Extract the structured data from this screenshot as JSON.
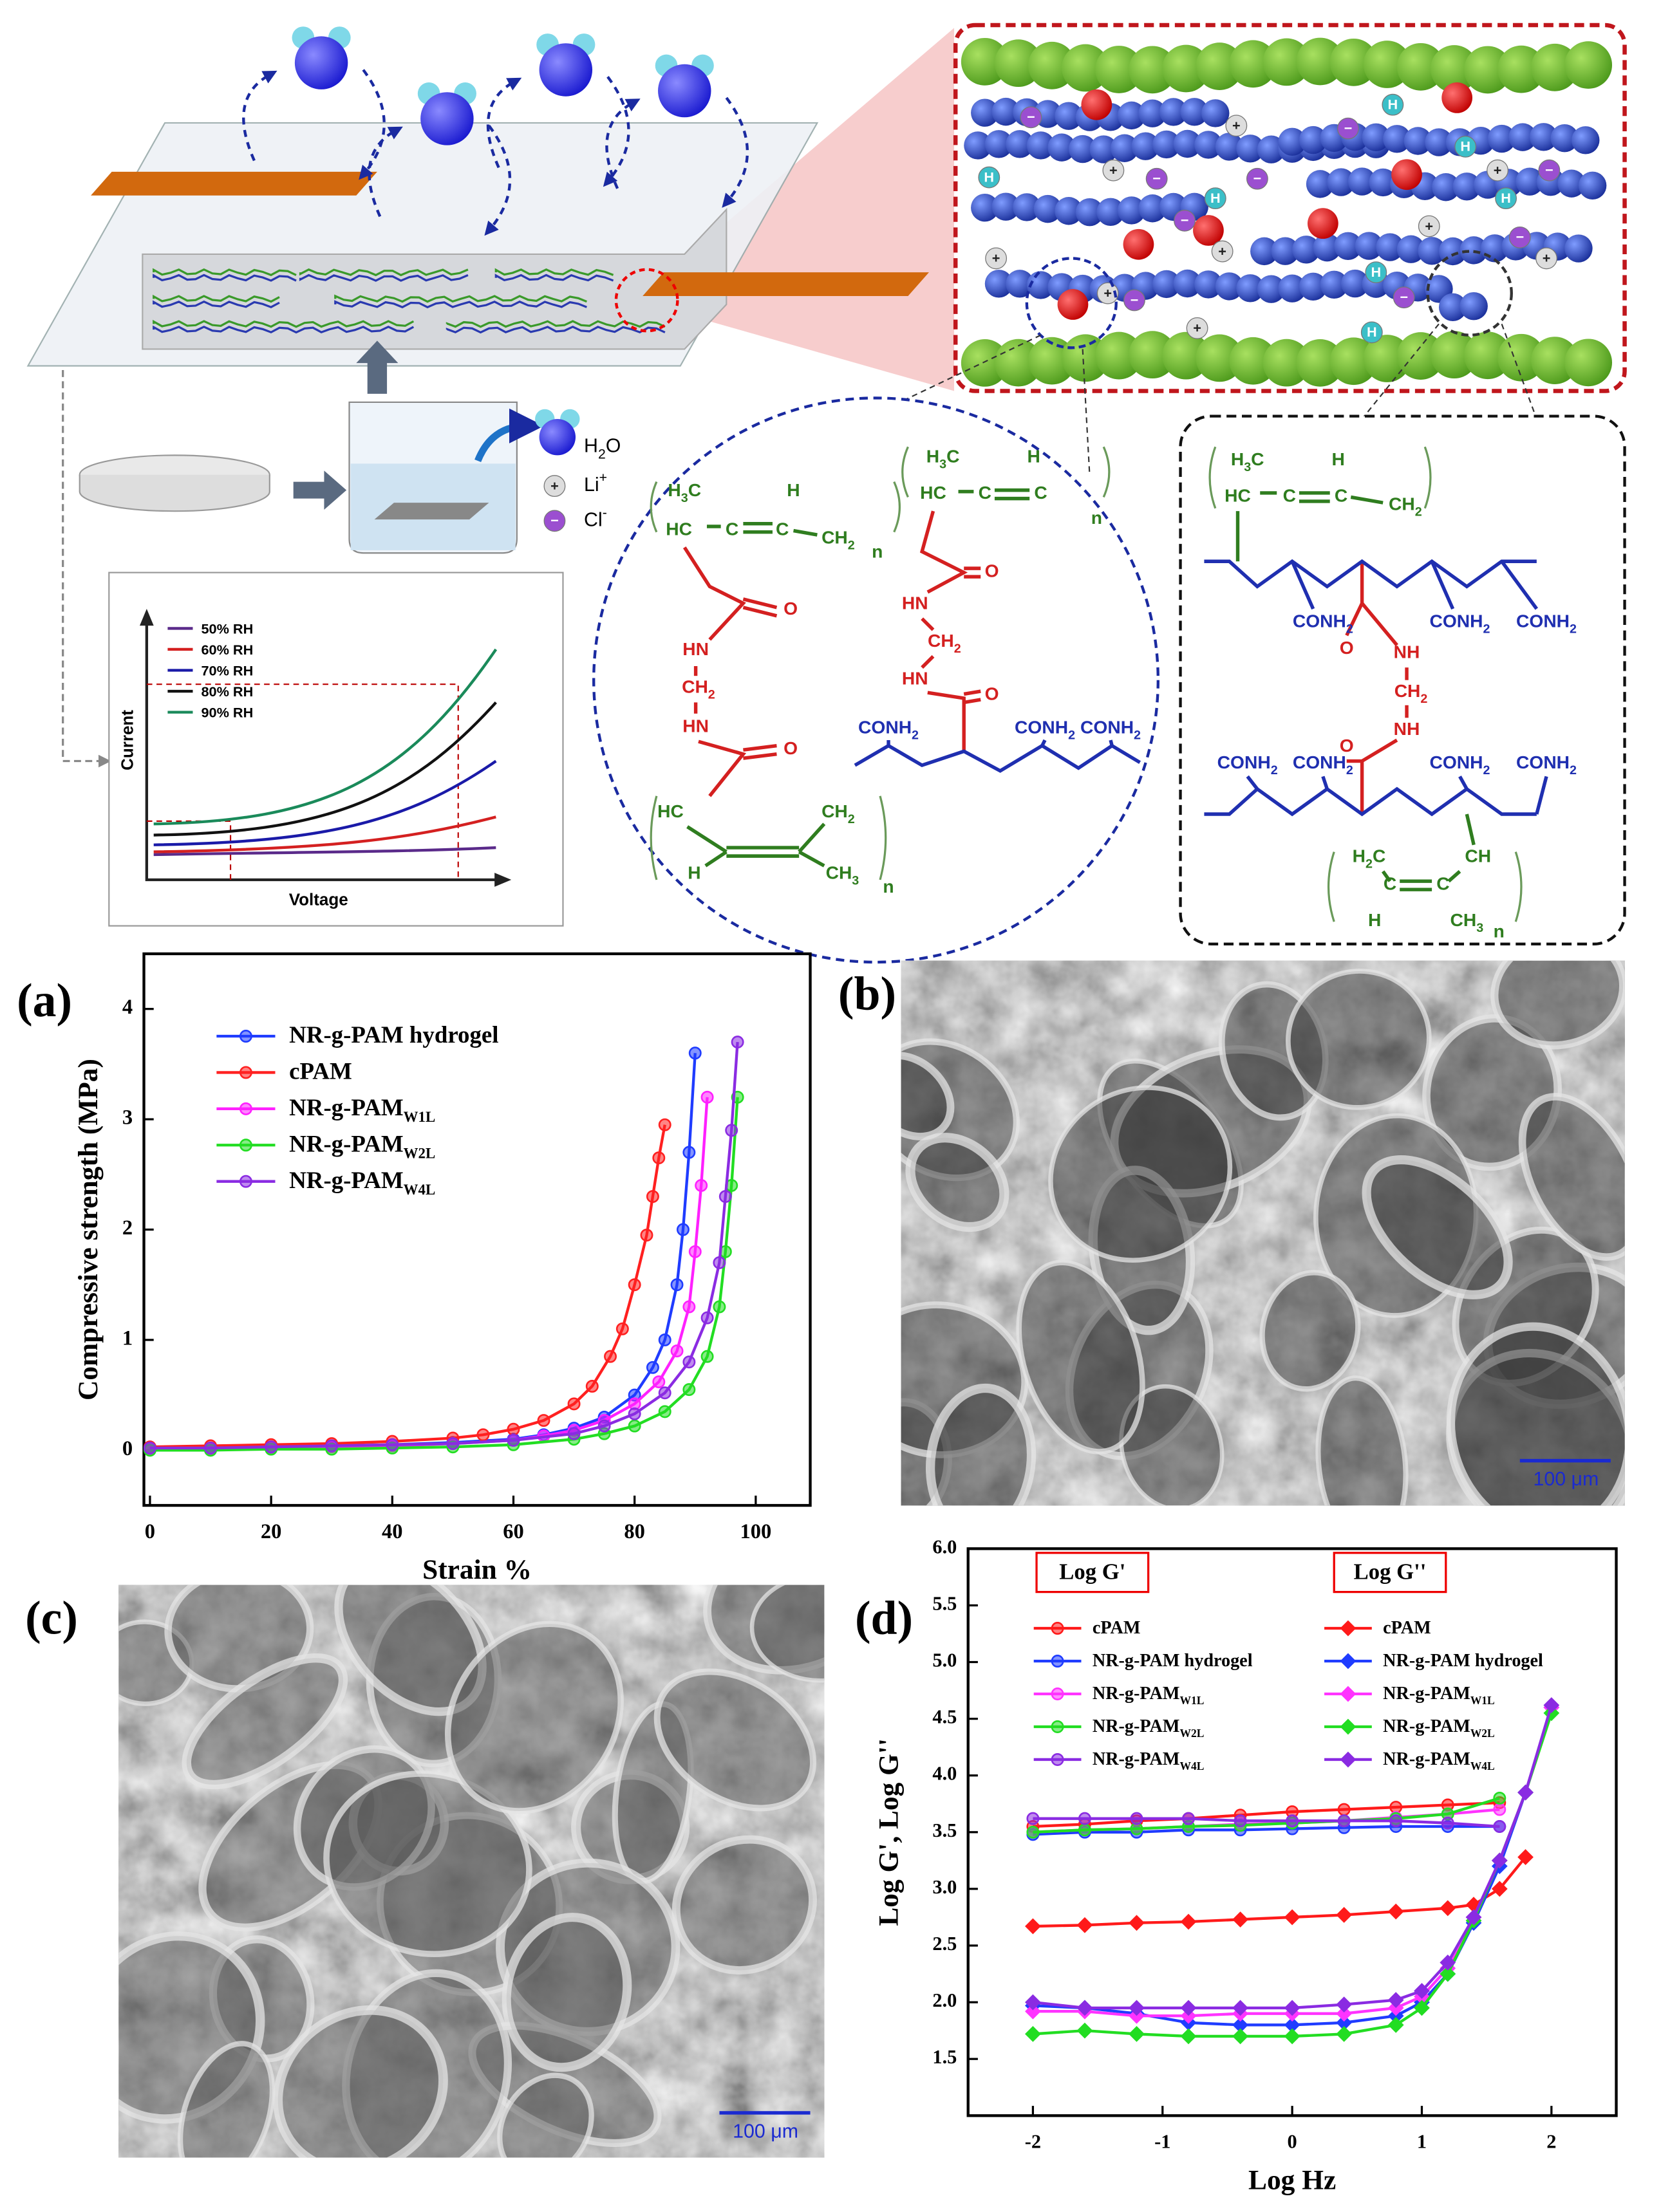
{
  "schematic": {
    "legend": [
      "H2O",
      "Li+",
      "Cl-"
    ],
    "ion_symbols": {
      "proton": "H",
      "cation": "+",
      "anion": "−"
    }
  },
  "inset": {
    "y_label": "Current",
    "x_label": "Voltage",
    "legend": [
      {
        "name": "50% RH",
        "color": "#5a2a8a"
      },
      {
        "name": "60% RH",
        "color": "#d42020"
      },
      {
        "name": "70% RH",
        "color": "#1a1aa8"
      },
      {
        "name": "80% RH",
        "color": "#111111"
      },
      {
        "name": "90% RH",
        "color": "#1a8a5a"
      }
    ]
  },
  "chem_labels": [
    {
      "text": "H3C",
      "color": "#2f7d1f"
    },
    {
      "text": "H",
      "color": "#2f7d1f"
    },
    {
      "text": "HC",
      "color": "#2f7d1f"
    },
    {
      "text": "C",
      "color": "#2f7d1f"
    },
    {
      "text": "C",
      "color": "#2f7d1f"
    },
    {
      "text": "CH2",
      "color": "#2f7d1f"
    },
    {
      "text": "n",
      "color": "#2f7d1f"
    },
    {
      "text": "O",
      "color": "#d42020"
    },
    {
      "text": "HN",
      "color": "#d42020"
    },
    {
      "text": "CH2",
      "color": "#d42020"
    },
    {
      "text": "HN",
      "color": "#d42020"
    },
    {
      "text": "O",
      "color": "#d42020"
    },
    {
      "text": "HC",
      "color": "#2f7d1f"
    },
    {
      "text": "CH2",
      "color": "#2f7d1f"
    },
    {
      "text": "H",
      "color": "#2f7d1f"
    },
    {
      "text": "CH3",
      "color": "#2f7d1f"
    },
    {
      "text": "n",
      "color": "#2f7d1f"
    },
    {
      "text": "H3C",
      "color": "#2f7d1f"
    },
    {
      "text": "H",
      "color": "#2f7d1f"
    },
    {
      "text": "HC",
      "color": "#2f7d1f"
    },
    {
      "text": "C",
      "color": "#2f7d1f"
    },
    {
      "text": "C",
      "color": "#2f7d1f"
    },
    {
      "text": "n",
      "color": "#2f7d1f"
    },
    {
      "text": "O",
      "color": "#d42020"
    },
    {
      "text": "HN",
      "color": "#d42020"
    },
    {
      "text": "CH2",
      "color": "#d42020"
    },
    {
      "text": "HN",
      "color": "#d42020"
    },
    {
      "text": "O",
      "color": "#d42020"
    },
    {
      "text": "CONH2",
      "color": "#1f2fb0"
    },
    {
      "text": "CONH2",
      "color": "#1f2fb0"
    },
    {
      "text": "CONH2",
      "color": "#1f2fb0"
    },
    {
      "text": "H3C",
      "color": "#2f7d1f"
    },
    {
      "text": "H",
      "color": "#2f7d1f"
    },
    {
      "text": "HC",
      "color": "#2f7d1f"
    },
    {
      "text": "C",
      "color": "#2f7d1f"
    },
    {
      "text": "C",
      "color": "#2f7d1f"
    },
    {
      "text": "CH2",
      "color": "#2f7d1f"
    },
    {
      "text": "CONH2",
      "color": "#1f2fb0"
    },
    {
      "text": "CONH2",
      "color": "#1f2fb0"
    },
    {
      "text": "CONH2",
      "color": "#1f2fb0"
    },
    {
      "text": "O",
      "color": "#d42020"
    },
    {
      "text": "NH",
      "color": "#d42020"
    },
    {
      "text": "CH2",
      "color": "#d42020"
    },
    {
      "text": "NH",
      "color": "#d42020"
    },
    {
      "text": "O",
      "color": "#d42020"
    },
    {
      "text": "CONH2",
      "color": "#1f2fb0"
    },
    {
      "text": "CONH2",
      "color": "#1f2fb0"
    },
    {
      "text": "CONH2",
      "color": "#1f2fb0"
    },
    {
      "text": "CONH2",
      "color": "#1f2fb0"
    },
    {
      "text": "H2C",
      "color": "#2f7d1f"
    },
    {
      "text": "CH",
      "color": "#2f7d1f"
    },
    {
      "text": "C",
      "color": "#2f7d1f"
    },
    {
      "text": "C",
      "color": "#2f7d1f"
    },
    {
      "text": "H",
      "color": "#2f7d1f"
    },
    {
      "text": "CH3",
      "color": "#2f7d1f"
    },
    {
      "text": "n",
      "color": "#2f7d1f"
    }
  ],
  "chart_data": [
    {
      "type": "line",
      "panel_label": "(a)",
      "x_label": "Strain %",
      "y_label": "Compressive strength (MPa)",
      "xlim": [
        -1,
        109
      ],
      "ylim": [
        -0.5,
        4.5
      ],
      "xticks": [
        0,
        20,
        40,
        60,
        80,
        100
      ],
      "yticks": [
        0,
        1,
        2,
        3,
        4
      ],
      "series": [
        {
          "name": "NR-g-PAM hydrogel",
          "color": "#1f3cff",
          "marker": "circle",
          "x": [
            0,
            10,
            20,
            30,
            40,
            50,
            60,
            65,
            70,
            75,
            80,
            83,
            85,
            87,
            88,
            89,
            90
          ],
          "values": [
            0.02,
            0.02,
            0.03,
            0.04,
            0.05,
            0.07,
            0.1,
            0.14,
            0.2,
            0.3,
            0.5,
            0.75,
            1.0,
            1.5,
            2.0,
            2.7,
            3.6
          ]
        },
        {
          "name": "cPAM",
          "color": "#ff2020",
          "marker": "circle",
          "x": [
            0,
            10,
            20,
            30,
            40,
            50,
            55,
            60,
            65,
            70,
            73,
            76,
            78,
            80,
            82,
            83,
            84,
            85
          ],
          "values": [
            0.03,
            0.04,
            0.05,
            0.06,
            0.08,
            0.11,
            0.14,
            0.19,
            0.27,
            0.42,
            0.58,
            0.85,
            1.1,
            1.5,
            1.95,
            2.3,
            2.65,
            2.95
          ]
        },
        {
          "name": "NR-g-PAM",
          "subscript": "W1L",
          "color": "#ff20ff",
          "marker": "circle",
          "x": [
            0,
            10,
            20,
            30,
            40,
            50,
            60,
            65,
            70,
            75,
            80,
            84,
            87,
            89,
            90,
            91,
            92
          ],
          "values": [
            0.01,
            0.01,
            0.02,
            0.03,
            0.04,
            0.06,
            0.09,
            0.13,
            0.18,
            0.27,
            0.42,
            0.62,
            0.9,
            1.3,
            1.8,
            2.4,
            3.2
          ]
        },
        {
          "name": "NR-g-PAM",
          "subscript": "W2L",
          "color": "#22dd22",
          "marker": "circle",
          "x": [
            0,
            10,
            20,
            30,
            40,
            50,
            60,
            70,
            75,
            80,
            85,
            89,
            92,
            94,
            95,
            96,
            97
          ],
          "values": [
            0,
            0,
            0.01,
            0.01,
            0.02,
            0.03,
            0.05,
            0.1,
            0.15,
            0.22,
            0.35,
            0.55,
            0.85,
            1.3,
            1.8,
            2.4,
            3.2
          ]
        },
        {
          "name": "NR-g-PAM",
          "subscript": "W4L",
          "color": "#8a2be2",
          "marker": "circle",
          "x": [
            0,
            10,
            20,
            30,
            40,
            50,
            60,
            70,
            75,
            80,
            85,
            89,
            92,
            94,
            95,
            96,
            97
          ],
          "values": [
            0.02,
            0.02,
            0.03,
            0.04,
            0.05,
            0.06,
            0.09,
            0.15,
            0.22,
            0.33,
            0.52,
            0.8,
            1.2,
            1.7,
            2.3,
            2.9,
            3.7
          ]
        }
      ]
    },
    {
      "type": "line",
      "panel_label": "(d)",
      "x_label": "Log Hz",
      "y_label": "Log G', Log G''",
      "legend_headers": [
        "Log G'",
        "Log G''"
      ],
      "xlim": [
        -2.5,
        2.5
      ],
      "ylim": [
        1.0,
        6.0
      ],
      "xticks": [
        -2,
        -1,
        0,
        1,
        2
      ],
      "yticks": [
        1.5,
        {
          "value": 2,
          "label": "2.0"
        },
        2.5,
        {
          "value": 3,
          "label": "3.0"
        },
        3.5,
        {
          "value": 4,
          "label": "4.0"
        },
        4.5,
        {
          "value": 5,
          "label": "5.0"
        },
        5.5,
        {
          "value": 6,
          "label": "6.0"
        }
      ],
      "series": [
        {
          "name": "cPAM",
          "color": "#ff1a1a",
          "marker": "circle",
          "x": [
            -2,
            -1.6,
            -1.2,
            -0.8,
            -0.4,
            0,
            0.4,
            0.8,
            1.2,
            1.6
          ],
          "values": [
            3.55,
            3.57,
            3.6,
            3.62,
            3.65,
            3.68,
            3.7,
            3.72,
            3.74,
            3.76
          ]
        },
        {
          "name": "NR-g-PAM hydrogel",
          "color": "#1f3cff",
          "marker": "circle",
          "x": [
            -2,
            -1.6,
            -1.2,
            -0.8,
            -0.4,
            0,
            0.4,
            0.8,
            1.2,
            1.6
          ],
          "values": [
            3.48,
            3.5,
            3.5,
            3.52,
            3.52,
            3.53,
            3.54,
            3.55,
            3.55,
            3.55
          ]
        },
        {
          "name": "NR-g-PAM",
          "subscript": "W1L",
          "color": "#ff33ff",
          "marker": "circle",
          "x": [
            -2,
            -1.6,
            -1.2,
            -0.8,
            -0.4,
            0,
            0.4,
            0.8,
            1.2,
            1.6
          ],
          "values": [
            3.5,
            3.52,
            3.53,
            3.55,
            3.57,
            3.58,
            3.6,
            3.63,
            3.66,
            3.7
          ]
        },
        {
          "name": "NR-g-PAM",
          "subscript": "W2L",
          "color": "#22dd22",
          "marker": "circle",
          "x": [
            -2,
            -1.6,
            -1.2,
            -0.8,
            -0.4,
            0,
            0.4,
            0.8,
            1.2,
            1.6
          ],
          "values": [
            3.5,
            3.52,
            3.53,
            3.55,
            3.56,
            3.58,
            3.6,
            3.62,
            3.66,
            3.8
          ]
        },
        {
          "name": "NR-g-PAM",
          "subscript": "W4L",
          "color": "#8a2be2",
          "marker": "circle",
          "x": [
            -2,
            -1.6,
            -1.2,
            -0.8,
            -0.4,
            0,
            0.4,
            0.8,
            1.2,
            1.6
          ],
          "values": [
            3.62,
            3.62,
            3.62,
            3.62,
            3.6,
            3.6,
            3.6,
            3.6,
            3.58,
            3.55
          ]
        },
        {
          "name": "cPAM",
          "color": "#ff1a1a",
          "marker": "diamond",
          "x": [
            -2,
            -1.6,
            -1.2,
            -0.8,
            -0.4,
            0,
            0.4,
            0.8,
            1.2,
            1.4,
            1.6,
            1.8
          ],
          "values": [
            2.67,
            2.68,
            2.7,
            2.71,
            2.73,
            2.75,
            2.77,
            2.8,
            2.83,
            2.86,
            3.0,
            3.28
          ]
        },
        {
          "name": "NR-g-PAM hydrogel",
          "color": "#1f3cff",
          "marker": "diamond",
          "x": [
            -2,
            -1.6,
            -1.2,
            -0.8,
            -0.4,
            0,
            0.4,
            0.8,
            1,
            1.2,
            1.4,
            1.6,
            1.8,
            2
          ],
          "values": [
            1.97,
            1.95,
            1.9,
            1.82,
            1.8,
            1.8,
            1.82,
            1.88,
            2.0,
            2.25,
            2.7,
            3.2,
            3.85,
            4.6
          ]
        },
        {
          "name": "NR-g-PAM",
          "subscript": "W1L",
          "color": "#ff33ff",
          "marker": "diamond",
          "x": [
            -2,
            -1.6,
            -1.2,
            -0.8,
            -0.4,
            0,
            0.4,
            0.8,
            1,
            1.2,
            1.4,
            1.6,
            1.8,
            2
          ],
          "values": [
            1.92,
            1.92,
            1.88,
            1.88,
            1.9,
            1.9,
            1.9,
            1.95,
            2.05,
            2.3,
            2.75,
            3.25,
            3.85,
            4.6
          ]
        },
        {
          "name": "NR-g-PAM",
          "subscript": "W2L",
          "color": "#22dd22",
          "marker": "diamond",
          "x": [
            -2,
            -1.6,
            -1.2,
            -0.8,
            -0.4,
            0,
            0.4,
            0.8,
            1,
            1.2,
            1.4,
            1.6,
            1.8,
            2
          ],
          "values": [
            1.72,
            1.75,
            1.72,
            1.7,
            1.7,
            1.7,
            1.72,
            1.8,
            1.95,
            2.25,
            2.72,
            3.25,
            3.85,
            4.55
          ]
        },
        {
          "name": "NR-g-PAM",
          "subscript": "W4L",
          "color": "#8a2be2",
          "marker": "diamond",
          "x": [
            -2,
            -1.6,
            -1.2,
            -0.8,
            -0.4,
            0,
            0.4,
            0.8,
            1,
            1.2,
            1.4,
            1.6,
            1.8,
            2
          ],
          "values": [
            2.0,
            1.95,
            1.95,
            1.95,
            1.95,
            1.95,
            1.98,
            2.02,
            2.1,
            2.35,
            2.75,
            3.25,
            3.85,
            4.62
          ]
        }
      ]
    }
  ],
  "panel_b": {
    "label": "(b)",
    "scale_bar": "100 μm"
  },
  "panel_c": {
    "label": "(c)",
    "scale_bar": "100 μm"
  }
}
